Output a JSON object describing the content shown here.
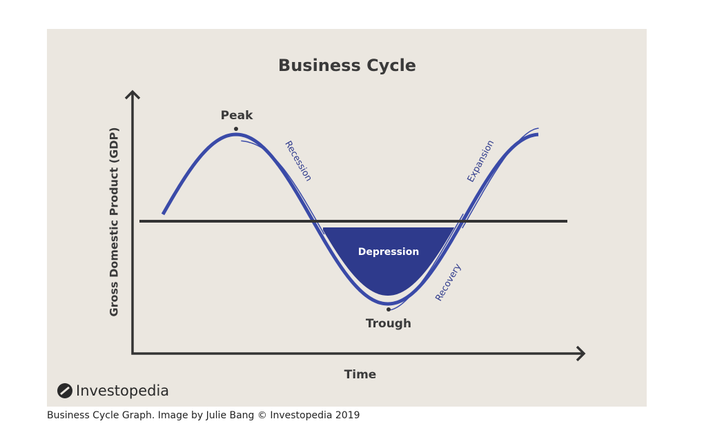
{
  "figure": {
    "title": "Business Cycle",
    "y_axis_label": "Gross Domestic Product (GDP)",
    "x_axis_label": "Time",
    "annotations": {
      "peak": "Peak",
      "recession": "Recession",
      "depression": "Depression",
      "trough": "Trough",
      "recovery": "Recovery",
      "expansion": "Expansion"
    },
    "logo": "Investopedia"
  },
  "caption": "Business Cycle Graph. Image by Julie Bang © Investopedia 2019"
}
